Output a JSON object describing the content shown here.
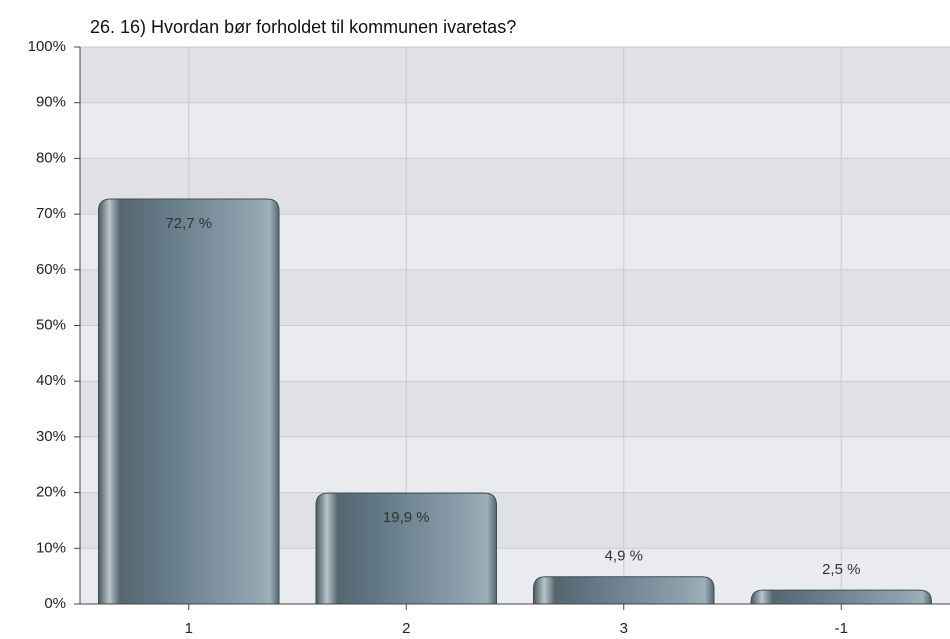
{
  "chart_data": {
    "type": "bar",
    "title": "26. 16) Hvordan bør forholdet til kommunen ivaretas?",
    "categories": [
      "1",
      "2",
      "3",
      "-1"
    ],
    "values": [
      72.7,
      19.9,
      4.9,
      2.5
    ],
    "value_labels": [
      "72,7 %",
      "19,9 %",
      "4,9 %",
      "2,5 %"
    ],
    "color": "#5f7582",
    "ylim": [
      0,
      100
    ],
    "yticks": [
      {
        "value": 0,
        "label": "0%"
      },
      {
        "value": 10,
        "label": "10%"
      },
      {
        "value": 20,
        "label": "20%"
      },
      {
        "value": 30,
        "label": "30%"
      },
      {
        "value": 40,
        "label": "40%"
      },
      {
        "value": 50,
        "label": "50%"
      },
      {
        "value": 60,
        "label": "60%"
      },
      {
        "value": 70,
        "label": "70%"
      },
      {
        "value": 80,
        "label": "80%"
      },
      {
        "value": 90,
        "label": "90%"
      },
      {
        "value": 100,
        "label": "100%"
      }
    ],
    "grid": true
  }
}
